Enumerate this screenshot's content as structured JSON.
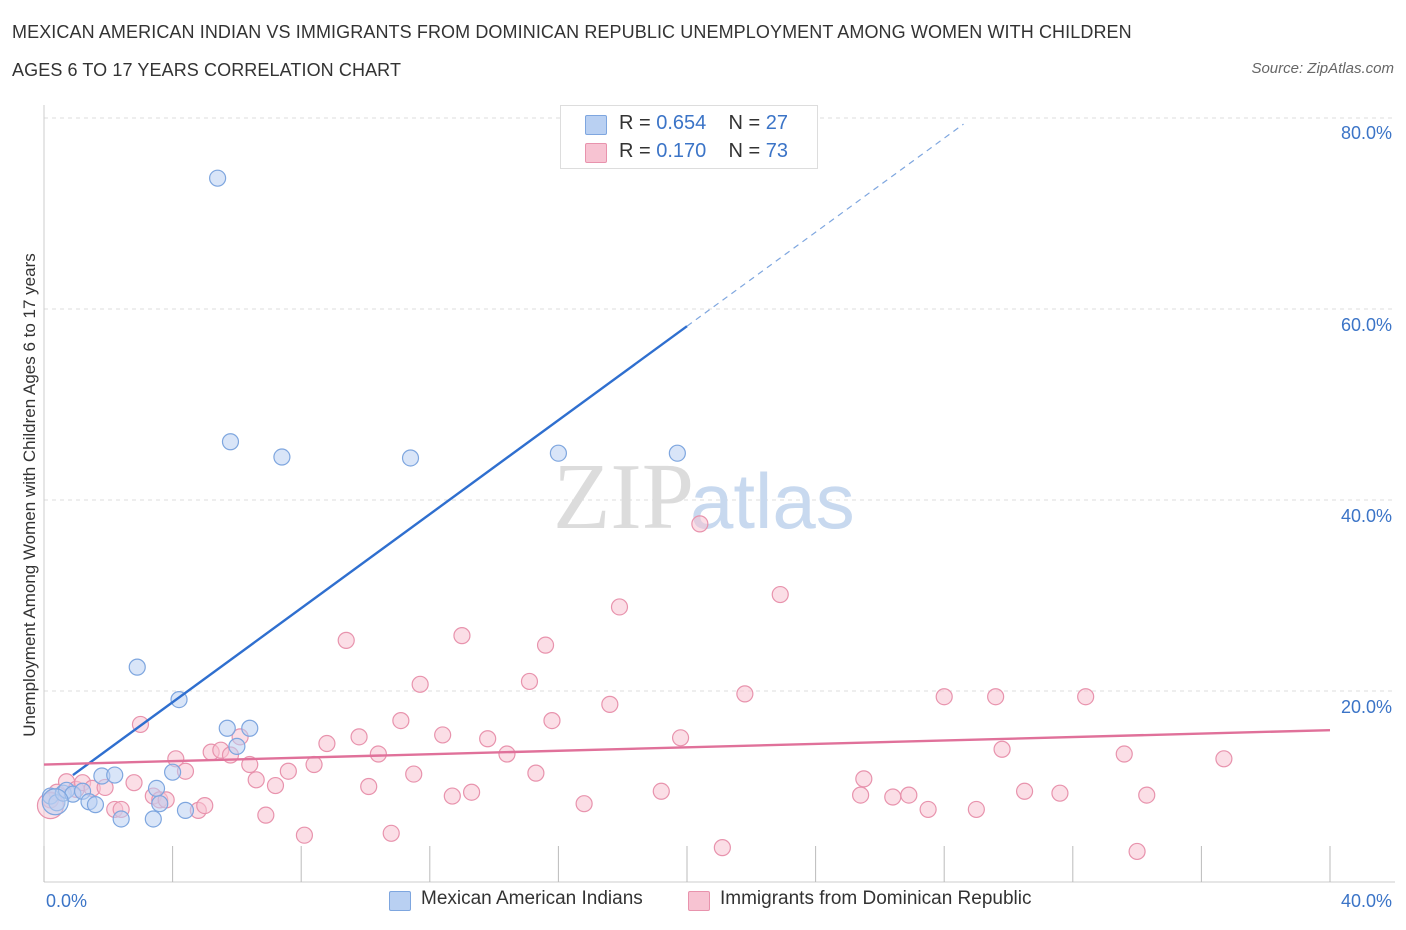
{
  "title_line1": "MEXICAN AMERICAN INDIAN VS IMMIGRANTS FROM DOMINICAN REPUBLIC UNEMPLOYMENT AMONG WOMEN WITH CHILDREN",
  "title_line2": "AGES 6 TO 17 YEARS CORRELATION CHART",
  "source": "Source: ZipAtlas.com",
  "watermark": {
    "zip": "ZIP",
    "atlas": "atlas"
  },
  "legend": {
    "r_label": "R =",
    "n_label": "N =",
    "rows": [
      {
        "r": "0.654",
        "n": "27"
      },
      {
        "r": "0.170",
        "n": "73"
      }
    ]
  },
  "colors": {
    "blue_fill": "#b9d0f2",
    "blue_stroke": "#7ea6df",
    "blue_line": "#2f6fcf",
    "pink_fill": "#f7c3d2",
    "pink_stroke": "#e893ad",
    "pink_line": "#e0719a",
    "tick_text": "#3b74c7",
    "grid": "#dddddd"
  },
  "chart_data": {
    "type": "scatter",
    "title": "MEXICAN AMERICAN INDIAN VS IMMIGRANTS FROM DOMINICAN REPUBLIC UNEMPLOYMENT AMONG WOMEN WITH CHILDREN AGES 6 TO 17 YEARS CORRELATION CHART",
    "xlabel": "",
    "ylabel": "Unemployment Among Women with Children Ages 6 to 17 years",
    "xlim": [
      0,
      40
    ],
    "ylim": [
      0,
      80
    ],
    "x_tick_labels": [
      "0.0%",
      "40.0%"
    ],
    "y_tick_labels": [
      "20.0%",
      "40.0%",
      "60.0%",
      "80.0%"
    ],
    "y_ticks": [
      20,
      40,
      60,
      80
    ],
    "grid": true,
    "legend_position": "top-center",
    "series": [
      {
        "name": "Mexican American Indians",
        "color": "blue",
        "r": 0.654,
        "n": 27,
        "trend": {
          "x0": 0.9,
          "y0": 11.2,
          "x1": 20.0,
          "y1": 58.2,
          "dashed_to_x": 28.6
        },
        "points": [
          [
            0.2,
            9.0
          ],
          [
            0.4,
            8.3
          ],
          [
            0.6,
            9.3
          ],
          [
            0.7,
            9.6
          ],
          [
            0.9,
            9.2
          ],
          [
            1.2,
            9.5
          ],
          [
            1.4,
            8.4
          ],
          [
            1.6,
            8.1
          ],
          [
            1.8,
            11.1
          ],
          [
            2.2,
            11.2
          ],
          [
            2.4,
            6.6
          ],
          [
            2.9,
            22.5
          ],
          [
            3.4,
            6.6
          ],
          [
            3.5,
            9.8
          ],
          [
            3.6,
            8.2
          ],
          [
            4.0,
            11.5
          ],
          [
            4.2,
            19.1
          ],
          [
            4.4,
            7.5
          ],
          [
            5.7,
            16.1
          ],
          [
            6.0,
            14.2
          ],
          [
            6.4,
            16.1
          ],
          [
            5.4,
            73.7
          ],
          [
            5.8,
            46.1
          ],
          [
            7.4,
            44.5
          ],
          [
            11.4,
            44.4
          ],
          [
            16.0,
            44.9
          ],
          [
            19.7,
            44.9
          ]
        ]
      },
      {
        "name": "Immigrants from Dominican Republic",
        "color": "pink",
        "r": 0.17,
        "n": 73,
        "trend": {
          "x0": 0,
          "y0": 12.3,
          "x1": 40,
          "y1": 15.9
        },
        "points": [
          [
            0.2,
            8.6
          ],
          [
            0.4,
            9.4
          ],
          [
            0.7,
            10.5
          ],
          [
            1.0,
            9.7
          ],
          [
            1.2,
            10.4
          ],
          [
            1.5,
            9.8
          ],
          [
            1.9,
            9.9
          ],
          [
            2.2,
            7.6
          ],
          [
            2.4,
            7.6
          ],
          [
            2.8,
            10.4
          ],
          [
            3.0,
            16.5
          ],
          [
            3.4,
            9.0
          ],
          [
            3.6,
            8.6
          ],
          [
            3.8,
            8.6
          ],
          [
            4.1,
            12.9
          ],
          [
            4.4,
            11.6
          ],
          [
            4.8,
            7.5
          ],
          [
            5.0,
            8.0
          ],
          [
            5.2,
            13.6
          ],
          [
            5.5,
            13.8
          ],
          [
            5.8,
            13.3
          ],
          [
            6.1,
            15.2
          ],
          [
            6.4,
            12.3
          ],
          [
            6.6,
            10.7
          ],
          [
            6.9,
            7.0
          ],
          [
            7.2,
            10.1
          ],
          [
            7.6,
            11.6
          ],
          [
            8.1,
            4.9
          ],
          [
            8.4,
            12.3
          ],
          [
            8.8,
            14.5
          ],
          [
            9.4,
            25.3
          ],
          [
            9.8,
            15.2
          ],
          [
            10.1,
            10.0
          ],
          [
            10.4,
            13.4
          ],
          [
            10.8,
            5.1
          ],
          [
            11.1,
            16.9
          ],
          [
            11.5,
            11.3
          ],
          [
            11.7,
            20.7
          ],
          [
            12.4,
            15.4
          ],
          [
            12.7,
            9.0
          ],
          [
            13.0,
            25.8
          ],
          [
            13.3,
            9.4
          ],
          [
            13.8,
            15.0
          ],
          [
            14.4,
            13.4
          ],
          [
            15.1,
            21.0
          ],
          [
            15.3,
            11.4
          ],
          [
            15.6,
            24.8
          ],
          [
            15.8,
            16.9
          ],
          [
            16.8,
            8.2
          ],
          [
            17.6,
            18.6
          ],
          [
            17.9,
            28.8
          ],
          [
            19.2,
            9.5
          ],
          [
            19.8,
            15.1
          ],
          [
            20.4,
            37.5
          ],
          [
            21.1,
            3.6
          ],
          [
            21.8,
            19.7
          ],
          [
            22.9,
            30.1
          ],
          [
            25.5,
            10.8
          ],
          [
            25.4,
            9.1
          ],
          [
            26.4,
            8.9
          ],
          [
            26.9,
            9.1
          ],
          [
            27.5,
            7.6
          ],
          [
            28.0,
            19.4
          ],
          [
            29.0,
            7.6
          ],
          [
            29.6,
            19.4
          ],
          [
            29.8,
            13.9
          ],
          [
            30.5,
            9.5
          ],
          [
            31.6,
            9.3
          ],
          [
            32.4,
            19.4
          ],
          [
            33.6,
            13.4
          ],
          [
            34.0,
            3.2
          ],
          [
            34.3,
            9.1
          ],
          [
            36.7,
            12.9
          ]
        ]
      }
    ]
  },
  "bottom_legend": [
    "Mexican American Indians",
    "Immigrants from Dominican Republic"
  ]
}
